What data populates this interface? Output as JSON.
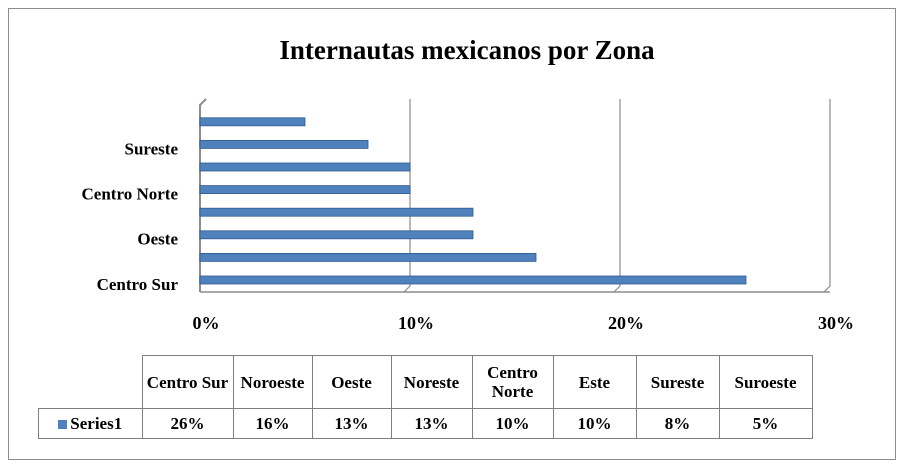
{
  "chart_data": {
    "type": "bar",
    "orientation": "horizontal",
    "title": "Internautas mexicanos por Zona",
    "categories": [
      "Centro Sur",
      "Noroeste",
      "Oeste",
      "Noreste",
      "Centro Norte",
      "Este",
      "Sureste",
      "Suroeste"
    ],
    "series": [
      {
        "name": "Series1",
        "color": "#4f81bd",
        "values": [
          26,
          16,
          13,
          13,
          10,
          10,
          8,
          5
        ],
        "value_labels": [
          "26%",
          "16%",
          "13%",
          "13%",
          "10%",
          "10%",
          "8%",
          "5%"
        ]
      }
    ],
    "xlim": [
      0,
      30
    ],
    "xticks": [
      {
        "value": 0,
        "label": "0%"
      },
      {
        "value": 10,
        "label": "10%"
      },
      {
        "value": 20,
        "label": "20%"
      },
      {
        "value": 30,
        "label": "30%"
      }
    ],
    "grid": true
  }
}
